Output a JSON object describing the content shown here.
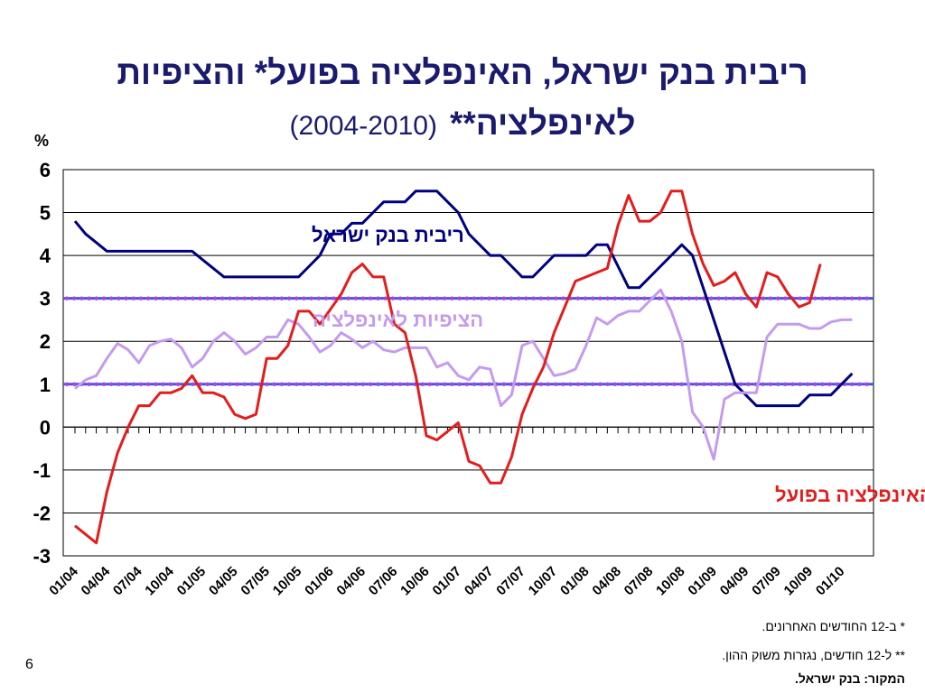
{
  "header": {
    "title_line1": "ריבית בנק ישראל, האינפלציה בפועל* והציפיות",
    "title_line2": "לאינפלציה**",
    "title_years": "(2004-2010)"
  },
  "footnotes": {
    "note1": "*   ב-12 החודשים האחרונים.",
    "note2": "** ל-12 חודשים, נגזרות משוק ההון.",
    "source": "המקור: בנק ישראל."
  },
  "page_number": "6",
  "colors": {
    "rate": "#000080",
    "inflation": "#e31d1d",
    "expectations": "#c49bf0",
    "band": "#3b5bdb",
    "band_dots": "#b040e0"
  },
  "chart_data": {
    "type": "line",
    "ylabel": "%",
    "ylim": [
      -3,
      6
    ],
    "yticks": [
      "6",
      "5",
      "4",
      "3",
      "2",
      "1",
      "0",
      "-1",
      "-2",
      "-3"
    ],
    "x_tick_labels": [
      "01/04",
      "04/04",
      "07/04",
      "10/04",
      "01/05",
      "04/05",
      "07/05",
      "10/05",
      "01/06",
      "04/06",
      "07/06",
      "10/06",
      "01/07",
      "04/07",
      "07/07",
      "10/07",
      "01/08",
      "04/08",
      "07/08",
      "10/08",
      "01/09",
      "04/09",
      "07/09",
      "10/09",
      "01/10"
    ],
    "target_band": [
      1,
      3
    ],
    "series": [
      {
        "name": "ריבית בנק ישראל",
        "color_key": "rate",
        "values": [
          4.8,
          4.5,
          4.3,
          4.1,
          4.1,
          4.1,
          4.1,
          4.1,
          4.1,
          4.1,
          4.1,
          4.1,
          3.9,
          3.7,
          3.5,
          3.5,
          3.5,
          3.5,
          3.5,
          3.5,
          3.5,
          3.5,
          3.75,
          4.0,
          4.5,
          4.5,
          4.75,
          4.75,
          5.0,
          5.25,
          5.25,
          5.25,
          5.5,
          5.5,
          5.5,
          5.25,
          5.0,
          4.5,
          4.25,
          4.0,
          4.0,
          3.75,
          3.5,
          3.5,
          3.75,
          4.0,
          4.0,
          4.0,
          4.0,
          4.25,
          4.25,
          3.75,
          3.25,
          3.25,
          3.5,
          3.75,
          4.0,
          4.25,
          4.0,
          3.25,
          2.5,
          1.75,
          1.0,
          0.75,
          0.5,
          0.5,
          0.5,
          0.5,
          0.5,
          0.75,
          0.75,
          0.75,
          1.0,
          1.25
        ]
      },
      {
        "name": "הציפיות לאינפלציה",
        "color_key": "expectations",
        "values": [
          0.9,
          1.1,
          1.2,
          1.6,
          1.95,
          1.8,
          1.5,
          1.9,
          2.0,
          2.05,
          1.85,
          1.4,
          1.6,
          2.0,
          2.2,
          2.0,
          1.7,
          1.85,
          2.1,
          2.1,
          2.5,
          2.4,
          2.1,
          1.75,
          1.9,
          2.2,
          2.05,
          1.85,
          2.0,
          1.8,
          1.75,
          1.85,
          1.85,
          1.85,
          1.4,
          1.5,
          1.2,
          1.1,
          1.4,
          1.35,
          0.5,
          0.75,
          1.9,
          2.0,
          1.6,
          1.2,
          1.25,
          1.35,
          1.9,
          2.55,
          2.4,
          2.6,
          2.7,
          2.7,
          2.95,
          3.2,
          2.7,
          2.0,
          0.35,
          0.0,
          -0.75,
          0.65,
          0.8,
          0.8,
          0.8,
          2.1,
          2.4,
          2.4,
          2.4,
          2.3,
          2.3,
          2.45,
          2.5,
          2.5
        ]
      },
      {
        "name": "האינפלציה בפועל",
        "color_key": "inflation",
        "values": [
          -2.3,
          -2.5,
          -2.7,
          -1.5,
          -0.6,
          0.0,
          0.5,
          0.5,
          0.8,
          0.8,
          0.9,
          1.2,
          0.8,
          0.8,
          0.7,
          0.3,
          0.2,
          0.3,
          1.6,
          1.6,
          1.9,
          2.7,
          2.7,
          2.4,
          2.75,
          3.1,
          3.6,
          3.8,
          3.5,
          3.5,
          2.4,
          2.2,
          1.2,
          -0.2,
          -0.3,
          -0.1,
          0.1,
          -0.8,
          -0.9,
          -1.3,
          -1.3,
          -0.7,
          0.3,
          0.9,
          1.4,
          2.2,
          2.8,
          3.4,
          3.5,
          3.6,
          3.7,
          4.7,
          5.4,
          4.8,
          4.8,
          5.0,
          5.5,
          5.5,
          4.5,
          3.8,
          3.3,
          3.4,
          3.6,
          3.1,
          2.8,
          3.6,
          3.5,
          3.1,
          2.8,
          2.9,
          3.8
        ]
      }
    ],
    "series_labels": {
      "rate": "ריבית בנק ישראל",
      "expectations": "הציפיות לאינפלציה",
      "inflation": "האינפלציה בפועל"
    }
  }
}
